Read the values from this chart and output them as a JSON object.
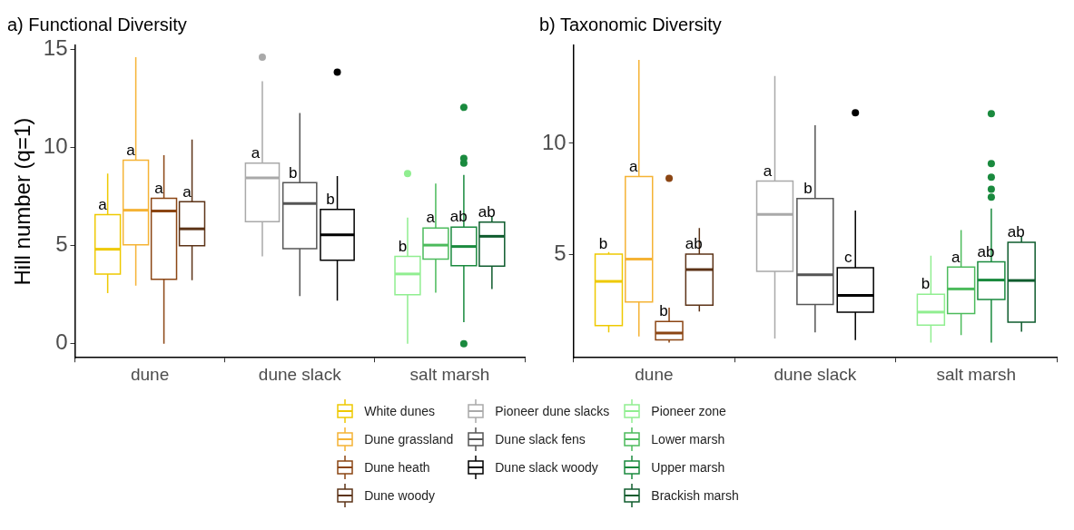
{
  "chart_data": [
    {
      "type": "box",
      "title": "a) Functional Diversity",
      "ylabel": "Hill number (q=1)",
      "categories": [
        "dune",
        "dune slack",
        "salt marsh"
      ],
      "ylim": [
        -0.72,
        15.2
      ],
      "yticks": [
        0,
        5,
        10,
        15
      ],
      "legend": "bottom",
      "series": [
        {
          "name": "White dunes",
          "color": "#eec900",
          "boxes": [
            {
              "low": 2.57,
              "q1": 3.55,
              "median": 4.81,
              "q3": 6.57,
              "high": 8.67
            },
            null,
            null
          ]
        },
        {
          "name": "Dune grassland",
          "color": "#f5b335",
          "boxes": [
            {
              "low": 2.96,
              "q1": 5.04,
              "median": 6.8,
              "q3": 9.35,
              "high": 14.6
            },
            null,
            null
          ]
        },
        {
          "name": "Dune heath",
          "color": "#8b4513",
          "boxes": [
            {
              "low": 0,
              "q1": 3.28,
              "median": 6.76,
              "q3": 7.41,
              "high": 9.6
            },
            null,
            null
          ]
        },
        {
          "name": "Dune woody",
          "color": "#5c3317",
          "boxes": [
            {
              "low": 3.23,
              "q1": 4.99,
              "median": 5.85,
              "q3": 7.23,
              "high": 10.4
            },
            null,
            null
          ]
        },
        {
          "name": "Pioneer dune slacks",
          "color": "#a9a9a9",
          "boxes": [
            null,
            {
              "low": 4.45,
              "q1": 6.21,
              "median": 8.45,
              "q3": 9.2,
              "high": 13.37,
              "outliers": [
                14.6
              ]
            },
            null
          ]
        },
        {
          "name": "Dune slack fens",
          "color": "#555555",
          "boxes": [
            null,
            {
              "low": 2.42,
              "q1": 4.84,
              "median": 7.14,
              "q3": 8.2,
              "high": 11.75
            },
            null
          ]
        },
        {
          "name": "Dune slack woody",
          "color": "#000000",
          "boxes": [
            null,
            {
              "low": 2.19,
              "q1": 4.25,
              "median": 5.54,
              "q3": 6.84,
              "high": 8.54,
              "outliers": [
                13.83
              ]
            },
            null
          ]
        },
        {
          "name": "Pioneer zone",
          "color": "#90ee90",
          "boxes": [
            null,
            null,
            {
              "low": 0,
              "q1": 2.49,
              "median": 3.55,
              "q3": 4.45,
              "high": 6.42,
              "outliers": [
                8.67
              ]
            }
          ]
        },
        {
          "name": "Lower marsh",
          "color": "#4cbb5c",
          "boxes": [
            null,
            null,
            {
              "low": 2.6,
              "q1": 4.31,
              "median": 5.02,
              "q3": 5.89,
              "high": 8.16
            }
          ]
        },
        {
          "name": "Upper marsh",
          "color": "#1a8a3e",
          "boxes": [
            null,
            null,
            {
              "low": 1.09,
              "q1": 3.97,
              "median": 4.95,
              "q3": 5.94,
              "high": 8.6,
              "outliers": [
                12.04,
                9.44,
                9.2,
                0
              ]
            }
          ]
        },
        {
          "name": "Brackish marsh",
          "color": "#0f5c2e",
          "boxes": [
            null,
            null,
            {
              "low": 2.78,
              "q1": 3.95,
              "median": 5.47,
              "q3": 6.19,
              "high": 6.51
            }
          ]
        }
      ],
      "annotations": [
        "a",
        "a",
        "a",
        "a",
        "a",
        "b",
        "b",
        "b",
        "a",
        "ab",
        "ab"
      ]
    },
    {
      "type": "box",
      "title": "b) Taxonomic Diversity",
      "categories": [
        "dune",
        "dune slack",
        "salt marsh"
      ],
      "ylim": [
        0.37,
        14.4
      ],
      "yticks": [
        5,
        10
      ],
      "series": [
        {
          "color": "#eec900",
          "boxes": [
            {
              "low": 1.51,
              "q1": 1.81,
              "median": 3.8,
              "q3": 5.02,
              "high": 5.12
            },
            null,
            null
          ]
        },
        {
          "color": "#f5b335",
          "boxes": [
            {
              "low": 1.33,
              "q1": 2.87,
              "median": 4.8,
              "q3": 8.51,
              "high": 13.75
            },
            null,
            null
          ]
        },
        {
          "color": "#8b4513",
          "boxes": [
            {
              "low": 1.05,
              "q1": 1.17,
              "median": 1.48,
              "q3": 2.0,
              "high": 2.62,
              "outliers": [
                8.43
              ]
            },
            null,
            null
          ]
        },
        {
          "color": "#5c3317",
          "boxes": [
            {
              "low": 2.45,
              "q1": 2.73,
              "median": 4.33,
              "q3": 5.03,
              "high": 6.2
            },
            null,
            null
          ]
        },
        {
          "color": "#a9a9a9",
          "boxes": [
            null,
            {
              "low": 1.23,
              "q1": 4.25,
              "median": 6.81,
              "q3": 8.31,
              "high": 13.02
            },
            null
          ]
        },
        {
          "color": "#555555",
          "boxes": [
            null,
            {
              "low": 1.51,
              "q1": 2.76,
              "median": 4.1,
              "q3": 7.52,
              "high": 10.81
            },
            null
          ]
        },
        {
          "color": "#000000",
          "boxes": [
            null,
            {
              "low": 1.16,
              "q1": 2.42,
              "median": 3.17,
              "q3": 4.41,
              "high": 6.98,
              "outliers": [
                11.37
              ]
            },
            null
          ]
        },
        {
          "color": "#90ee90",
          "boxes": [
            null,
            null,
            {
              "low": 1.05,
              "q1": 1.84,
              "median": 2.42,
              "q3": 3.22,
              "high": 4.95
            }
          ]
        },
        {
          "color": "#4cbb5c",
          "boxes": [
            null,
            null,
            {
              "low": 1.39,
              "q1": 2.35,
              "median": 3.46,
              "q3": 4.44,
              "high": 6.11
            }
          ]
        },
        {
          "color": "#1a8a3e",
          "boxes": [
            null,
            null,
            {
              "low": 1.05,
              "q1": 2.99,
              "median": 3.86,
              "q3": 4.68,
              "high": 7.07,
              "outliers": [
                11.33,
                9.09,
                8.48,
                7.94,
                7.58
              ]
            }
          ]
        },
        {
          "color": "#0f5c2e",
          "boxes": [
            null,
            null,
            {
              "low": 1.54,
              "q1": 1.97,
              "median": 3.84,
              "q3": 5.55,
              "high": 5.81
            }
          ]
        }
      ],
      "annotations": [
        "b",
        "a",
        "b",
        "ab",
        "a",
        "b",
        "c",
        "b",
        "a",
        "ab",
        "ab"
      ]
    }
  ]
}
